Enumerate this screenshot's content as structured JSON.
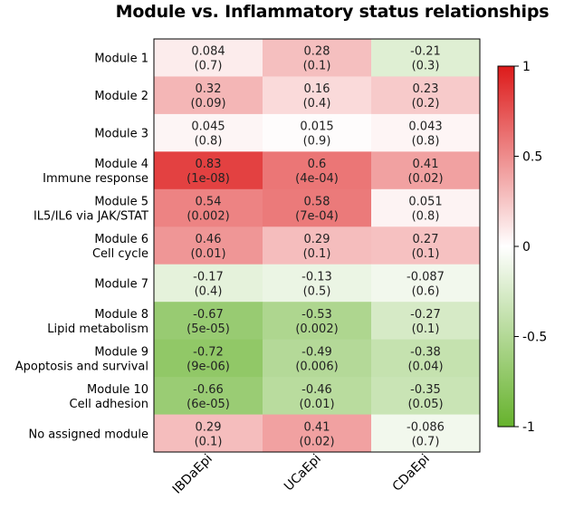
{
  "chart_data": {
    "type": "heatmap",
    "title": "Module vs. Inflammatory status relationships",
    "columns": [
      "IBDaEpi",
      "UCaEpi",
      "CDaEpi"
    ],
    "rows": [
      {
        "label": [
          "Module 1"
        ],
        "values": [
          "0.084",
          "0.28",
          "-0.21"
        ],
        "pvalues": [
          "(0.7)",
          "(0.1)",
          "(0.3)"
        ]
      },
      {
        "label": [
          "Module 2"
        ],
        "values": [
          "0.32",
          "0.16",
          "0.23"
        ],
        "pvalues": [
          "(0.09)",
          "(0.4)",
          "(0.2)"
        ]
      },
      {
        "label": [
          "Module 3"
        ],
        "values": [
          "0.045",
          "0.015",
          "0.043"
        ],
        "pvalues": [
          "(0.8)",
          "(0.9)",
          "(0.8)"
        ]
      },
      {
        "label": [
          "Module 4",
          "Immune response"
        ],
        "values": [
          "0.83",
          "0.6",
          "0.41"
        ],
        "pvalues": [
          "(1e-08)",
          "(4e-04)",
          "(0.02)"
        ]
      },
      {
        "label": [
          "Module 5",
          "IL5/IL6 via JAK/STAT"
        ],
        "values": [
          "0.54",
          "0.58",
          "0.051"
        ],
        "pvalues": [
          "(0.002)",
          "(7e-04)",
          "(0.8)"
        ]
      },
      {
        "label": [
          "Module 6",
          "Cell cycle"
        ],
        "values": [
          "0.46",
          "0.29",
          "0.27"
        ],
        "pvalues": [
          "(0.01)",
          "(0.1)",
          "(0.1)"
        ]
      },
      {
        "label": [
          "Module 7"
        ],
        "values": [
          "-0.17",
          "-0.13",
          "-0.087"
        ],
        "pvalues": [
          "(0.4)",
          "(0.5)",
          "(0.6)"
        ]
      },
      {
        "label": [
          "Module 8",
          "Lipid metabolism"
        ],
        "values": [
          "-0.67",
          "-0.53",
          "-0.27"
        ],
        "pvalues": [
          "(5e-05)",
          "(0.002)",
          "(0.1)"
        ]
      },
      {
        "label": [
          "Module 9",
          "Apoptosis and survival"
        ],
        "values": [
          "-0.72",
          "-0.49",
          "-0.38"
        ],
        "pvalues": [
          "(9e-06)",
          "(0.006)",
          "(0.04)"
        ]
      },
      {
        "label": [
          "Module 10",
          "Cell adhesion"
        ],
        "values": [
          "-0.66",
          "-0.46",
          "-0.35"
        ],
        "pvalues": [
          "(6e-05)",
          "(0.01)",
          "(0.05)"
        ]
      },
      {
        "label": [
          "No assigned module"
        ],
        "values": [
          "0.29",
          "0.41",
          "-0.086"
        ],
        "pvalues": [
          "(0.1)",
          "(0.02)",
          "(0.7)"
        ]
      }
    ],
    "colorbar": {
      "ticks": [
        "1",
        "0.5",
        "0",
        "-0.5",
        "-1"
      ],
      "range": [
        -1,
        1
      ],
      "colors": {
        "low": "#66b22c",
        "mid": "#ffffff",
        "high": "#dd1a1a"
      }
    }
  }
}
